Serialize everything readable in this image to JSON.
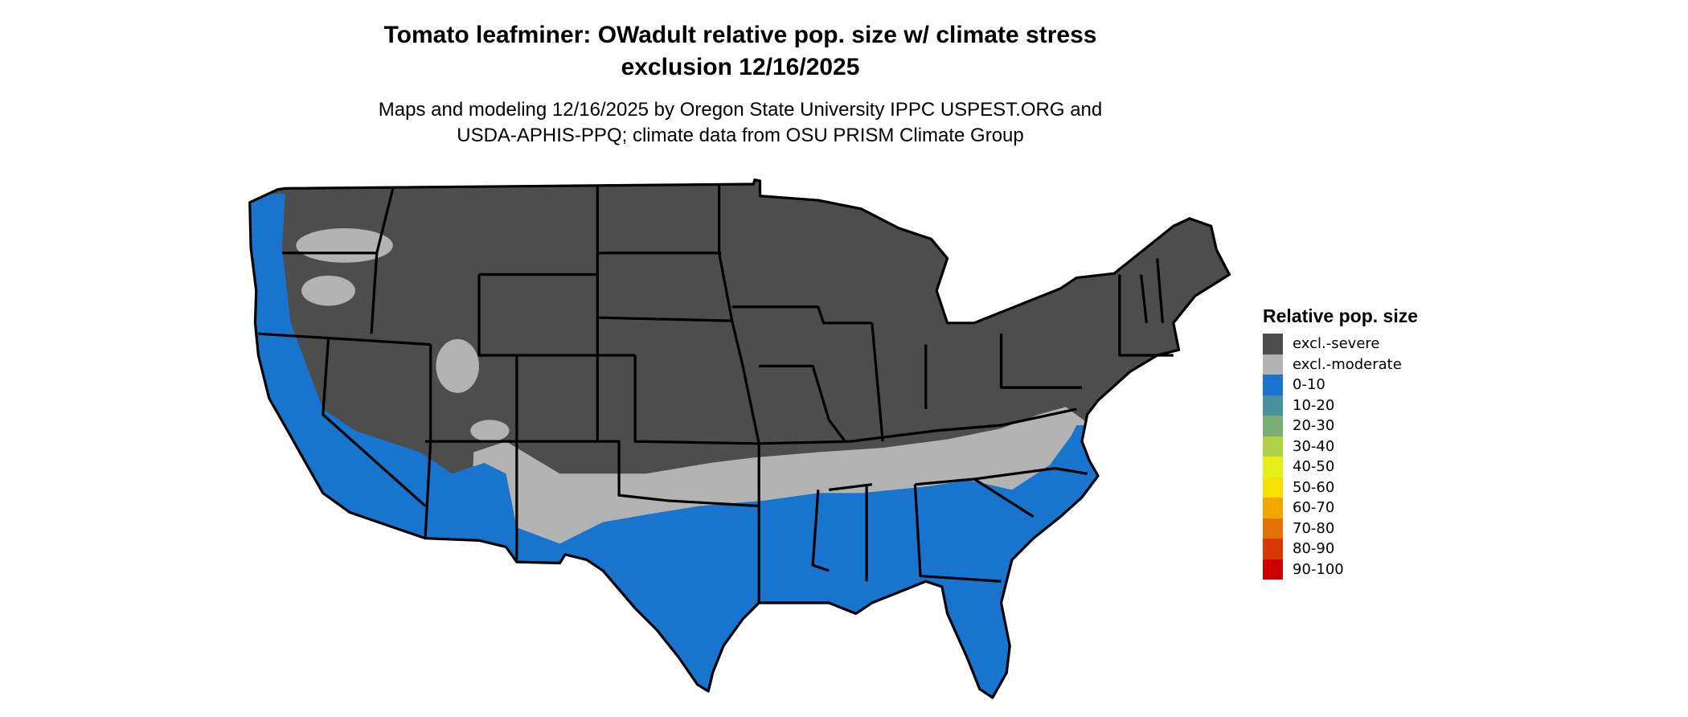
{
  "title": {
    "line1": "Tomato leafminer: OWadult relative pop. size w/ climate stress",
    "line2": "exclusion 12/16/2025"
  },
  "subtitle": {
    "line1": "Maps and modeling 12/16/2025 by Oregon State University IPPC USPEST.ORG and",
    "line2": "USDA-APHIS-PPQ; climate data from OSU PRISM Climate Group"
  },
  "legend": {
    "title": "Relative pop. size",
    "items": [
      {
        "label": "excl.-severe",
        "color": "#4d4d4d"
      },
      {
        "label": "excl.-moderate",
        "color": "#b3b3b3"
      },
      {
        "label": "0-10",
        "color": "#1874cd"
      },
      {
        "label": "10-20",
        "color": "#4a929b"
      },
      {
        "label": "20-30",
        "color": "#7bae74"
      },
      {
        "label": "30-40",
        "color": "#b2d14a"
      },
      {
        "label": "40-50",
        "color": "#e5f016"
      },
      {
        "label": "50-60",
        "color": "#f8e000"
      },
      {
        "label": "60-70",
        "color": "#f0a800"
      },
      {
        "label": "70-80",
        "color": "#e37200"
      },
      {
        "label": "80-90",
        "color": "#d93800"
      },
      {
        "label": "90-100",
        "color": "#cc0000"
      }
    ]
  },
  "map": {
    "region": "contiguous United States",
    "severe_color": "#4d4d4d",
    "moderate_color": "#b3b3b3",
    "low_color": "#1874cd",
    "border_color": "#000000"
  }
}
